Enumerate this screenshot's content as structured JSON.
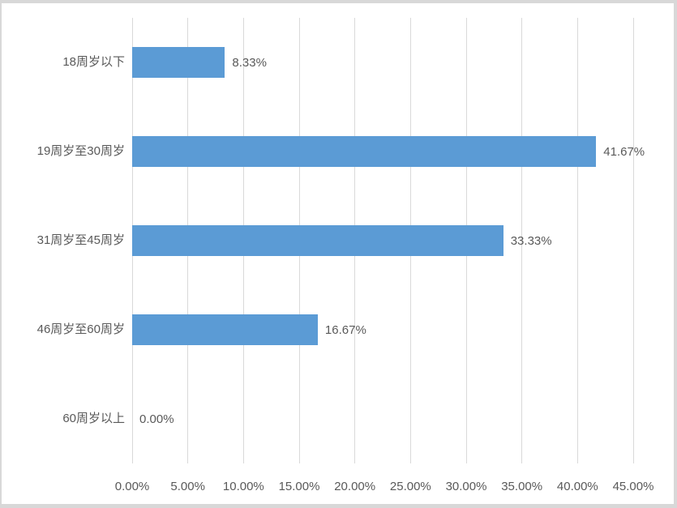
{
  "chart_data": {
    "type": "bar",
    "orientation": "horizontal",
    "title": "",
    "xlabel": "",
    "ylabel": "",
    "categories": [
      "18周岁以下",
      "19周岁至30周岁",
      "31周岁至45周岁",
      "46周岁至60周岁",
      "60周岁以上"
    ],
    "values": [
      8.33,
      41.67,
      33.33,
      16.67,
      0.0
    ],
    "data_labels": [
      "8.33%",
      "41.67%",
      "33.33%",
      "16.67%",
      "0.00%"
    ],
    "x_ticks": [
      0,
      5,
      10,
      15,
      20,
      25,
      30,
      35,
      40,
      45
    ],
    "x_tick_labels": [
      "0.00%",
      "5.00%",
      "10.00%",
      "15.00%",
      "20.00%",
      "25.00%",
      "30.00%",
      "35.00%",
      "40.00%",
      "45.00%"
    ],
    "xlim": [
      0,
      45
    ],
    "grid": true,
    "legend": false,
    "colors": {
      "bar": "#5b9bd5",
      "gridline": "#d9d9d9",
      "text": "#595959",
      "frame_border": "#d8d8d8",
      "background": "#ffffff"
    }
  },
  "layout_note": "horizontal bar chart, bars start at 0% gridline, data labels to the right of each bar"
}
